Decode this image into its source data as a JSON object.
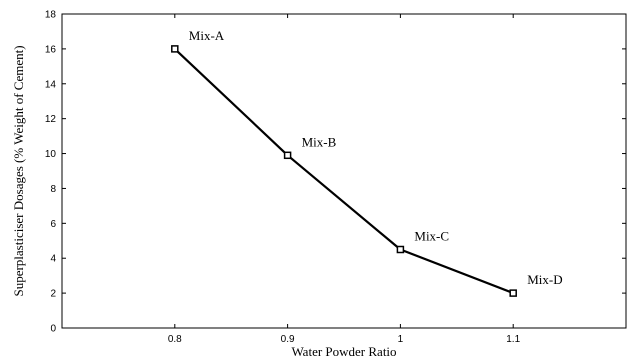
{
  "chart_data": {
    "type": "line",
    "title": "",
    "xlabel": "Water Powder Ratio",
    "ylabel": "Superplasticiser Dosages (% Weight of Cement)",
    "xlim": [
      0.7,
      1.2
    ],
    "ylim": [
      0,
      18
    ],
    "xticks": [
      "0.8",
      "0.9",
      "1",
      "1.1"
    ],
    "yticks": [
      "0",
      "2",
      "4",
      "6",
      "8",
      "10",
      "12",
      "14",
      "16",
      "18"
    ],
    "grid": false,
    "series": [
      {
        "x": [
          0.8,
          0.9,
          1.0,
          1.1
        ],
        "y": [
          16.0,
          9.9,
          4.5,
          2.0
        ],
        "point_labels": [
          "Mix-A",
          "Mix-B",
          "Mix-C",
          "Mix-D"
        ],
        "color": "#000000",
        "marker": "square"
      }
    ]
  }
}
